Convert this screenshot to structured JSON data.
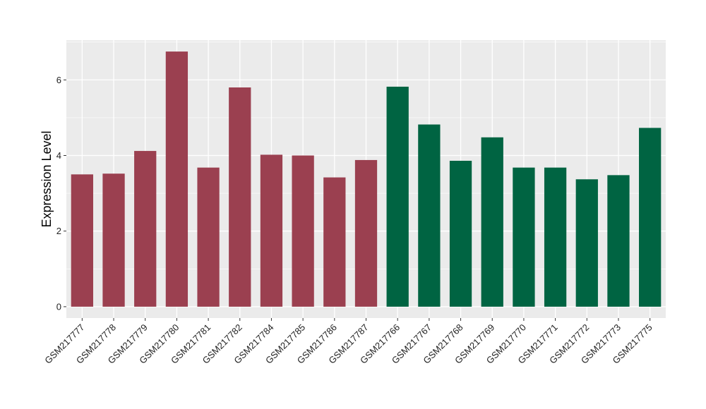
{
  "chart_data": {
    "type": "bar",
    "title": "",
    "xlabel": "",
    "ylabel": "Expression Level",
    "ylim": [
      -0.3,
      7.05
    ],
    "yticks": [
      0,
      2,
      4,
      6
    ],
    "grid": true,
    "legend": "none",
    "categories": [
      "GSM217777",
      "GSM217778",
      "GSM217779",
      "GSM217780",
      "GSM217781",
      "GSM217782",
      "GSM217784",
      "GSM217785",
      "GSM217786",
      "GSM217787",
      "GSM217766",
      "GSM217767",
      "GSM217768",
      "GSM217769",
      "GSM217770",
      "GSM217771",
      "GSM217772",
      "GSM217773",
      "GSM217775"
    ],
    "values": [
      3.5,
      3.52,
      4.12,
      6.75,
      3.68,
      5.8,
      4.02,
      4.0,
      3.42,
      3.88,
      5.82,
      4.82,
      3.86,
      4.48,
      3.68,
      3.68,
      3.37,
      3.48,
      4.73
    ],
    "groups": [
      0,
      0,
      0,
      0,
      0,
      0,
      0,
      0,
      0,
      0,
      1,
      1,
      1,
      1,
      1,
      1,
      1,
      1,
      1
    ],
    "colors": {
      "group0": "#9b4050",
      "group1": "#006442",
      "panel": "#ebebeb",
      "grid": "#ffffff"
    }
  }
}
